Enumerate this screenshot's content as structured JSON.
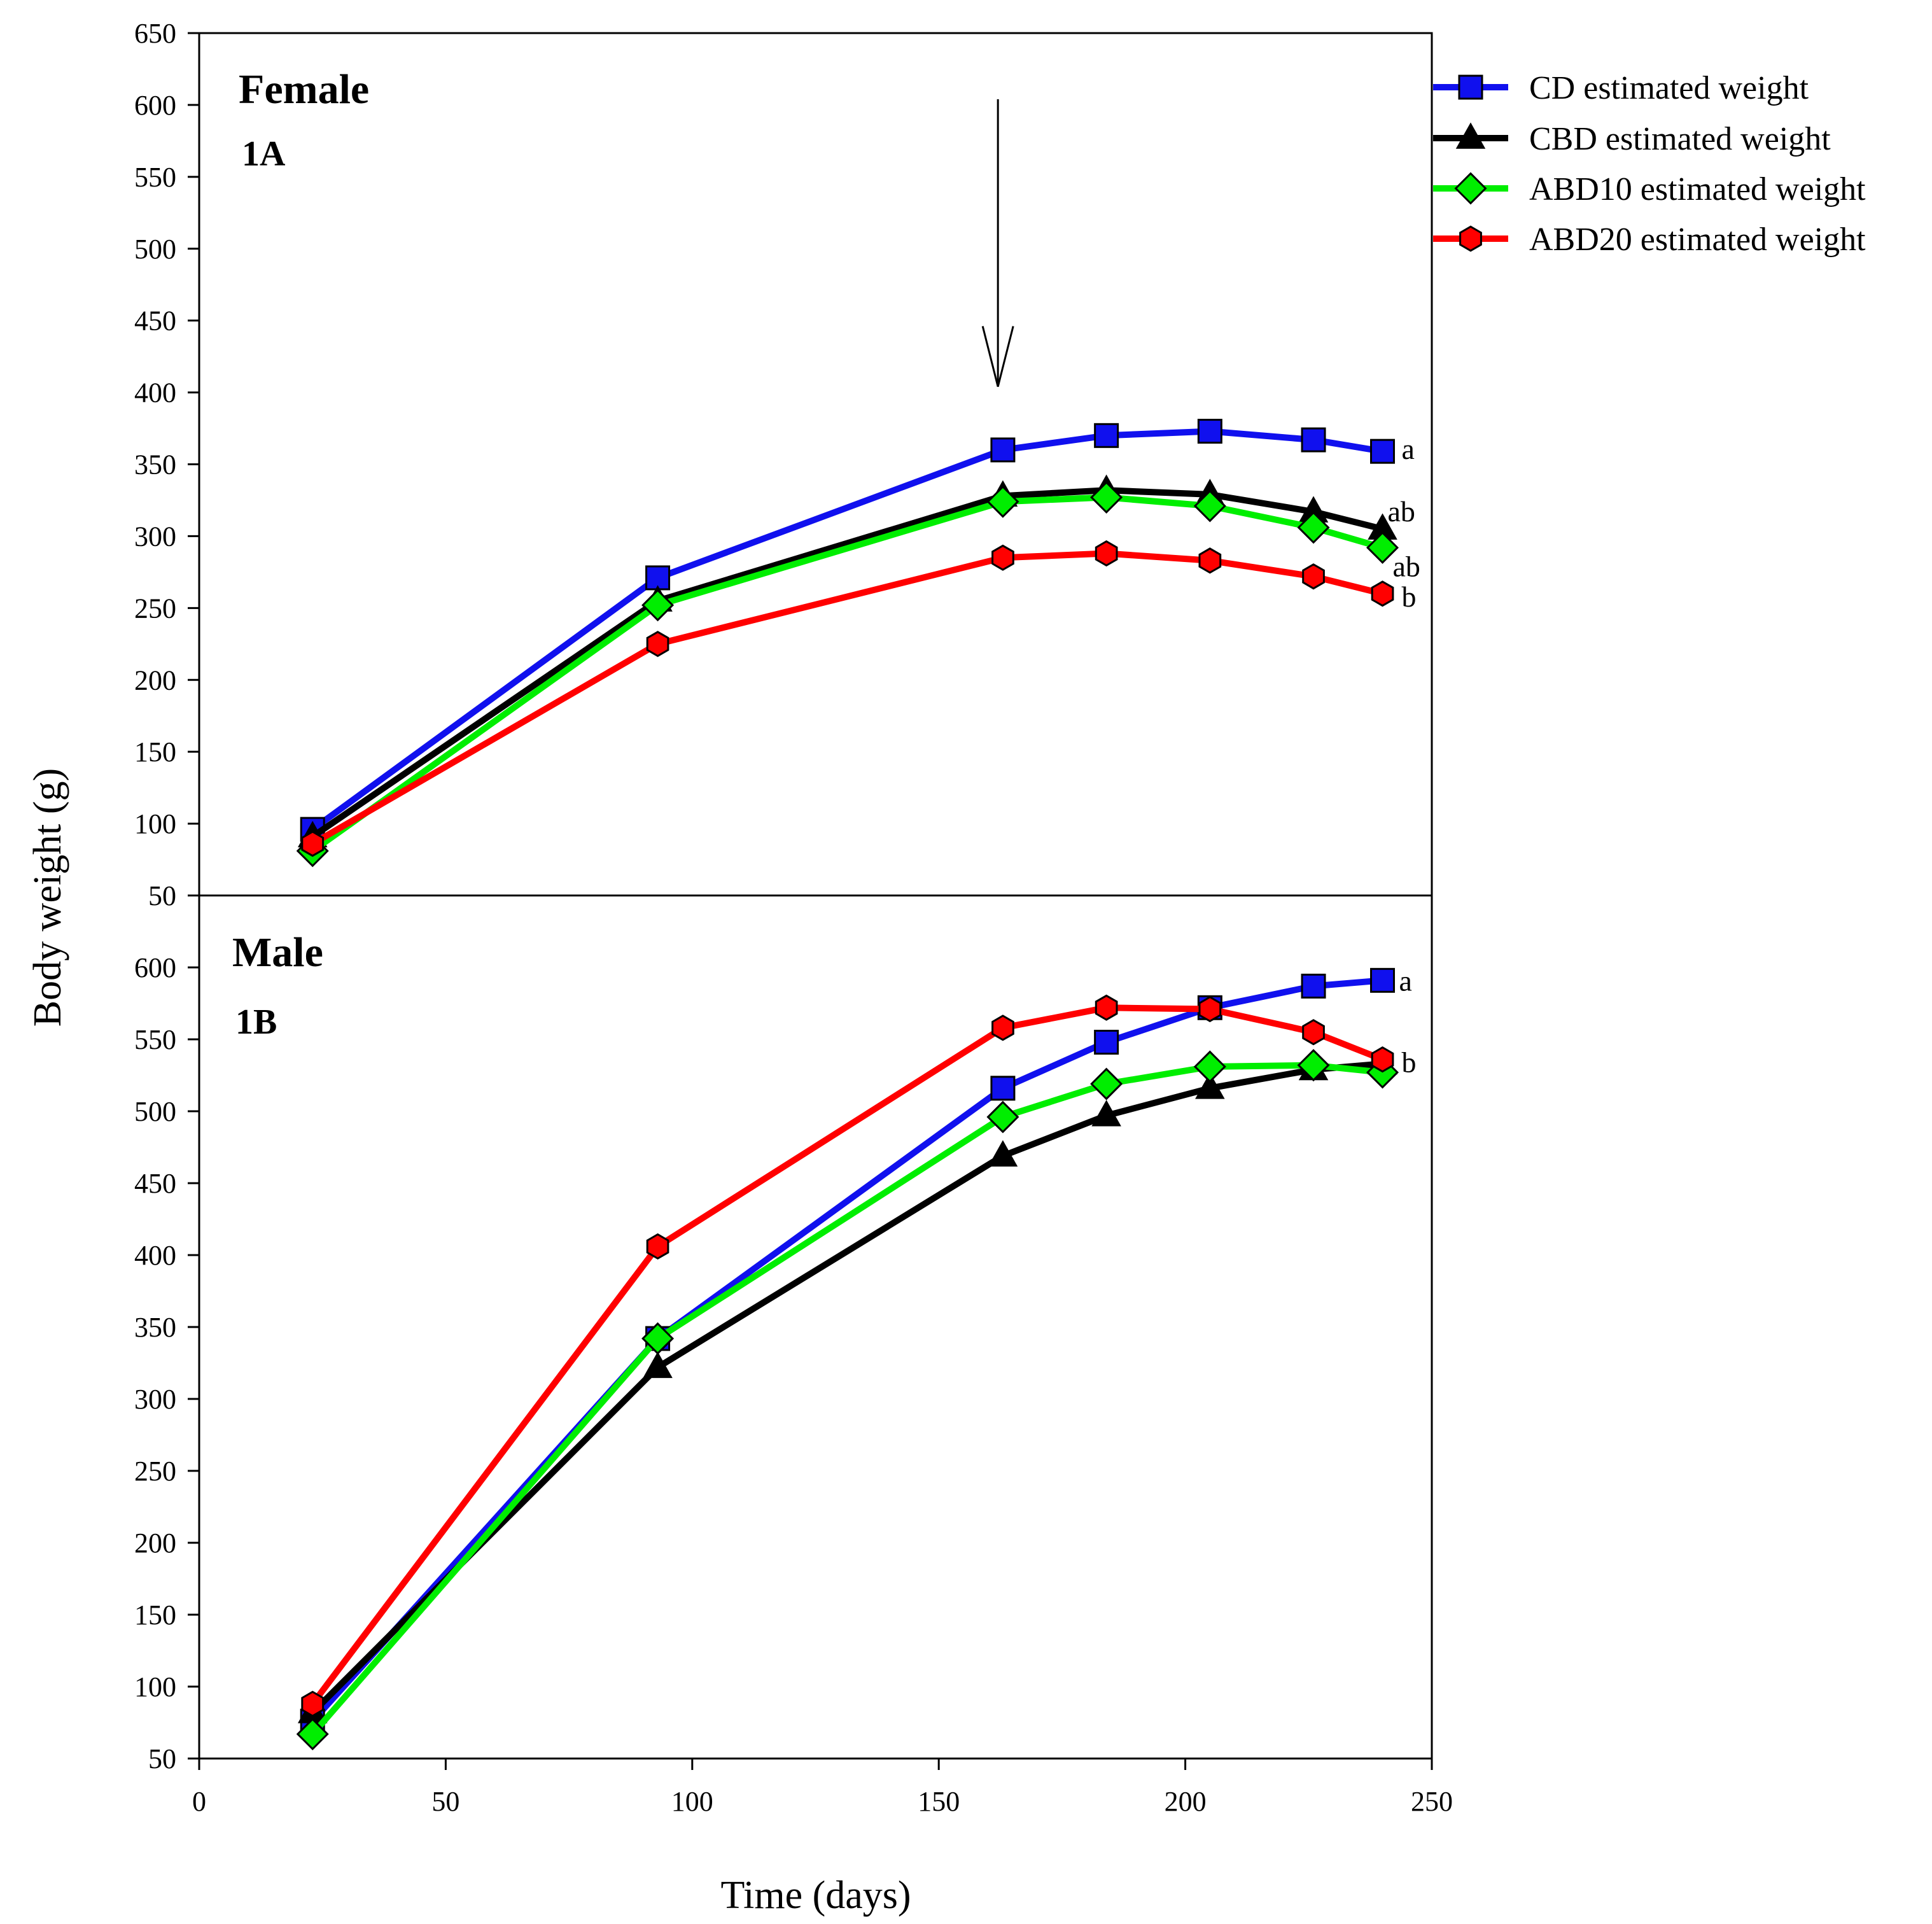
{
  "chart_data": [
    {
      "type": "line",
      "panel": "top",
      "title": "Female",
      "subtitle": "1A",
      "xlabel": "Time (days)",
      "ylabel": "Body weight (g)",
      "xlim": [
        0,
        250
      ],
      "ylim": [
        50,
        650
      ],
      "yticks": [
        50,
        100,
        150,
        200,
        250,
        300,
        350,
        400,
        450,
        500,
        550,
        600,
        650
      ],
      "x": [
        23,
        93,
        163,
        184,
        205,
        226,
        240
      ],
      "annotation": {
        "type": "arrow",
        "x": 162,
        "y_start": 604,
        "y_end": 404
      },
      "series": [
        {
          "name": "CD estimated weight",
          "color": "#1010ee",
          "marker": "square",
          "values": [
            96,
            271,
            360,
            370,
            373,
            367,
            359
          ],
          "label": "a"
        },
        {
          "name": "CBD estimated weight",
          "color": "#000000",
          "marker": "triangle",
          "values": [
            91,
            255,
            328,
            332,
            329,
            317,
            305
          ],
          "label": "ab"
        },
        {
          "name": "ABD10 estimated weight",
          "color": "#00ee00",
          "marker": "diamond",
          "values": [
            81,
            252,
            324,
            327,
            321,
            306,
            292
          ],
          "label": "ab"
        },
        {
          "name": "ABD20 estimated weight",
          "color": "#ff0000",
          "marker": "hexagon",
          "values": [
            86,
            225,
            285,
            288,
            283,
            272,
            260
          ],
          "label": "b"
        }
      ]
    },
    {
      "type": "line",
      "panel": "bottom",
      "title": "Male",
      "subtitle": "1B",
      "xlabel": "Time (days)",
      "ylabel": "Body weight (g)",
      "xlim": [
        0,
        250
      ],
      "ylim": [
        50,
        650
      ],
      "yticks": [
        50,
        100,
        150,
        200,
        250,
        300,
        350,
        400,
        450,
        500,
        550,
        600
      ],
      "xticks": [
        0,
        50,
        100,
        150,
        200,
        250
      ],
      "x": [
        23,
        93,
        163,
        184,
        205,
        226,
        240
      ],
      "series": [
        {
          "name": "CD estimated weight",
          "color": "#1010ee",
          "marker": "square",
          "values": [
            76,
            342,
            516,
            548,
            572,
            587,
            591
          ],
          "label": "a"
        },
        {
          "name": "CBD estimated weight",
          "color": "#000000",
          "marker": "triangle",
          "values": [
            82,
            322,
            469,
            497,
            516,
            529,
            533
          ],
          "label": ""
        },
        {
          "name": "ABD10 estimated weight",
          "color": "#00ee00",
          "marker": "diamond",
          "values": [
            67,
            342,
            496,
            519,
            531,
            532,
            527
          ],
          "label": ""
        },
        {
          "name": "ABD20 estimated weight",
          "color": "#ff0000",
          "marker": "hexagon",
          "values": [
            88,
            406,
            558,
            572,
            571,
            555,
            536
          ],
          "label": "b"
        }
      ]
    }
  ]
}
